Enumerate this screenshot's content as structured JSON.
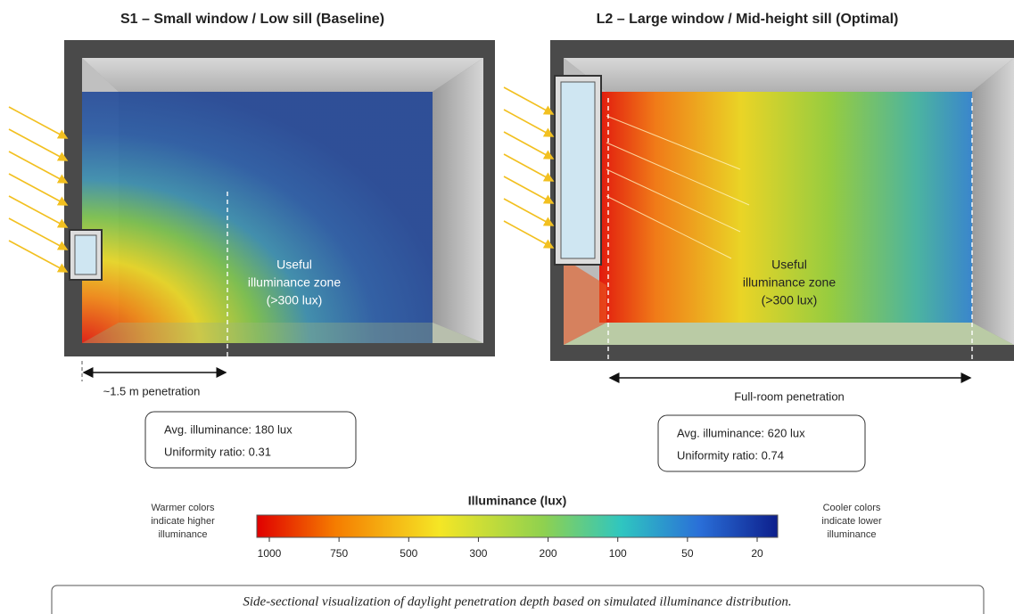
{
  "panels": [
    {
      "title": "S1 – Small window / Low sill (Baseline)",
      "zone_label": [
        "Useful",
        "illuminance zone",
        "(>300 lux)"
      ],
      "penetration": "~1.5 m penetration",
      "stats": [
        "Avg. illuminance: 180 lux",
        "Uniformity ratio: 0.31"
      ]
    },
    {
      "title": "L2 – Large window / Mid-height sill (Optimal)",
      "zone_label": [
        "Useful",
        "illuminance zone",
        "(>300 lux)"
      ],
      "penetration": "Full-room penetration",
      "stats": [
        "Avg. illuminance: 620 lux",
        "Uniformity ratio: 0.74"
      ]
    }
  ],
  "legend": {
    "title": "Illuminance (lux)",
    "ticks": [
      1000,
      750,
      500,
      300,
      200,
      100,
      50,
      20
    ],
    "left_note": [
      "Warmer colors",
      "indicate higher",
      "illuminance"
    ],
    "right_note": [
      "Cooler colors",
      "indicate lower",
      "illuminance"
    ]
  },
  "caption": "Side-sectional visualization of daylight penetration depth based on simulated illuminance distribution."
}
